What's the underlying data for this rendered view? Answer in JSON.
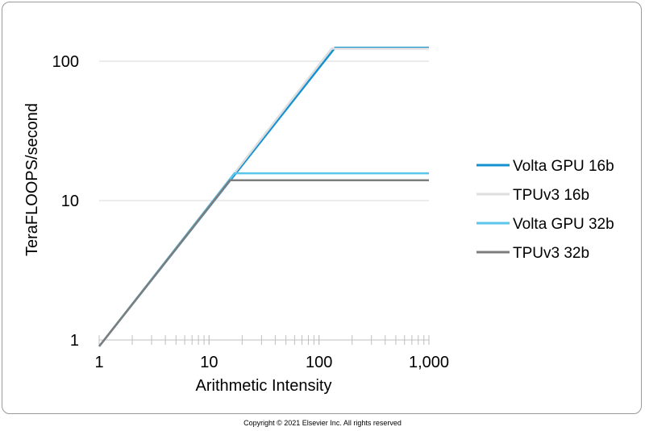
{
  "chart_data": {
    "type": "line",
    "xlabel": "Arithmetic Intensity",
    "ylabel": "TeraFLOOPS/second",
    "xscale": "log",
    "yscale": "log",
    "xlim": [
      1,
      1000
    ],
    "ylim": [
      1,
      200
    ],
    "x_ticks": [
      {
        "value": 1,
        "label": "1"
      },
      {
        "value": 10,
        "label": "10"
      },
      {
        "value": 100,
        "label": "100"
      },
      {
        "value": 1000,
        "label": "1,000"
      }
    ],
    "y_ticks": [
      {
        "value": 1,
        "label": "1"
      },
      {
        "value": 10,
        "label": "10"
      },
      {
        "value": 100,
        "label": "100"
      }
    ],
    "grid": "horizontal",
    "legend_position": "right",
    "series": [
      {
        "name": "Volta GPU 16b",
        "color": "#1591d2",
        "width": 2.5,
        "points": [
          [
            1,
            0.9
          ],
          [
            140,
            125
          ],
          [
            1000,
            125
          ]
        ]
      },
      {
        "name": "TPUv3 16b",
        "color": "#dedede",
        "width": 2.5,
        "points": [
          [
            1,
            0.9
          ],
          [
            130,
            123
          ],
          [
            1000,
            123
          ]
        ]
      },
      {
        "name": "Volta GPU 32b",
        "color": "#5bc6ec",
        "width": 2.5,
        "points": [
          [
            1,
            0.9
          ],
          [
            17,
            15.7
          ],
          [
            1000,
            15.7
          ]
        ]
      },
      {
        "name": "TPUv3 32b",
        "color": "#7d7d7d",
        "width": 2.5,
        "points": [
          [
            1,
            0.9
          ],
          [
            15.5,
            14
          ],
          [
            1000,
            14
          ]
        ]
      }
    ]
  },
  "footer": {
    "copyright": "Copyright © 2021 Elsevier Inc. All rights reserved"
  }
}
